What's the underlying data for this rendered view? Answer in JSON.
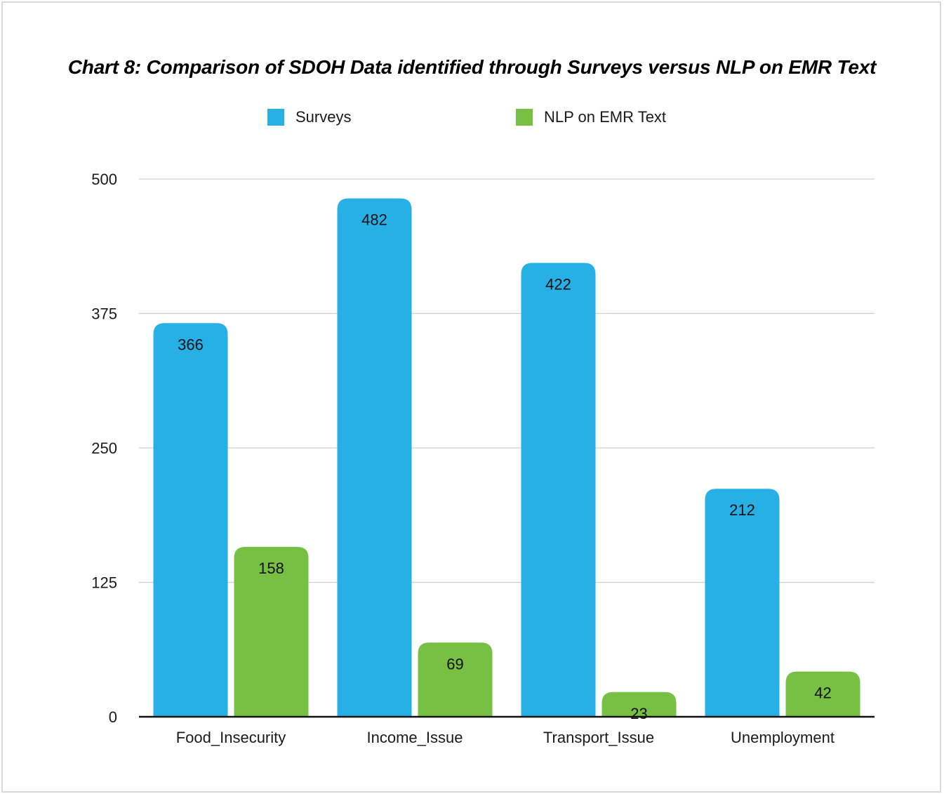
{
  "chart_data": {
    "type": "bar",
    "title": "Chart 8: Comparison of SDOH Data identified through Surveys versus NLP on EMR Text",
    "xlabel": "",
    "ylabel": "",
    "categories": [
      "Food_Insecurity",
      "Income_Issue",
      "Transport_Issue",
      "Unemployment"
    ],
    "series": [
      {
        "name": "Surveys",
        "color": "#27b0e6",
        "values": [
          366,
          482,
          422,
          212
        ]
      },
      {
        "name": "NLP on EMR Text",
        "color": "#78c043",
        "values": [
          158,
          69,
          23,
          42
        ]
      }
    ],
    "ylim": [
      0,
      500
    ],
    "yticks": [
      0,
      125,
      250,
      375,
      500
    ],
    "grid": true,
    "legend_position": "top-center",
    "data_labels": true
  }
}
